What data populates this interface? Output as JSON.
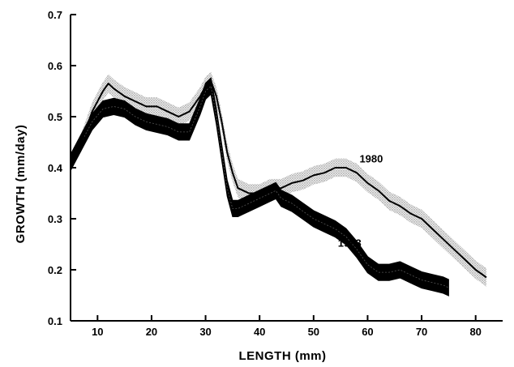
{
  "chart_data": {
    "type": "line",
    "title": "",
    "xlabel": "LENGTH (mm)",
    "ylabel": "GROWTH (mm/day)",
    "xlim": [
      5,
      85
    ],
    "ylim": [
      0.1,
      0.7
    ],
    "xticks": [
      10,
      20,
      30,
      40,
      50,
      60,
      70,
      80
    ],
    "xtick_labels": [
      "10",
      "20",
      "30",
      "40",
      "50",
      "60",
      "70",
      "80"
    ],
    "yticks": [
      0.1,
      0.2,
      0.3,
      0.4,
      0.5,
      0.6,
      0.7
    ],
    "ytick_labels": [
      "0.1",
      "0.2",
      "0.3",
      "0.4",
      "0.5",
      "0.6",
      "0.7"
    ],
    "grid": false,
    "legend": "none",
    "series": [
      {
        "name": "1980",
        "style": "thin line with stippled confidence band",
        "color": "#000000",
        "band_color": "#bdbdbd",
        "x": [
          5,
          7,
          9,
          11,
          12,
          13,
          15,
          17,
          19,
          21,
          23,
          25,
          27,
          29,
          30,
          31,
          32,
          33,
          34,
          35,
          36,
          37,
          38,
          40,
          42,
          44,
          46,
          48,
          50,
          52,
          54,
          56,
          58,
          60,
          62,
          64,
          66,
          68,
          70,
          72,
          74,
          76,
          78,
          80,
          82
        ],
        "y": [
          0.41,
          0.45,
          0.51,
          0.55,
          0.565,
          0.555,
          0.54,
          0.53,
          0.52,
          0.52,
          0.51,
          0.5,
          0.51,
          0.54,
          0.56,
          0.57,
          0.54,
          0.49,
          0.43,
          0.39,
          0.36,
          0.355,
          0.35,
          0.35,
          0.36,
          0.36,
          0.37,
          0.375,
          0.385,
          0.39,
          0.4,
          0.4,
          0.39,
          0.37,
          0.355,
          0.335,
          0.325,
          0.31,
          0.3,
          0.28,
          0.26,
          0.24,
          0.22,
          0.2,
          0.185
        ],
        "band_halfwidth": 0.018
      },
      {
        "name": "1983",
        "style": "thick solid band",
        "color": "#000000",
        "x": [
          5,
          7,
          9,
          11,
          13,
          15,
          17,
          19,
          21,
          23,
          25,
          27,
          29,
          30,
          31,
          32,
          33,
          34,
          35,
          36,
          37,
          38,
          40,
          42,
          43,
          44,
          46,
          48,
          50,
          52,
          54,
          56,
          58,
          60,
          62,
          64,
          66,
          68,
          70,
          72,
          74,
          75
        ],
        "y": [
          0.41,
          0.45,
          0.49,
          0.515,
          0.52,
          0.515,
          0.5,
          0.49,
          0.485,
          0.48,
          0.47,
          0.47,
          0.52,
          0.55,
          0.56,
          0.5,
          0.43,
          0.36,
          0.32,
          0.32,
          0.325,
          0.33,
          0.34,
          0.35,
          0.355,
          0.34,
          0.33,
          0.315,
          0.3,
          0.29,
          0.28,
          0.265,
          0.24,
          0.21,
          0.195,
          0.195,
          0.2,
          0.19,
          0.18,
          0.175,
          0.17,
          0.165
        ],
        "band_halfwidth": 0.016
      }
    ],
    "annotations": [
      {
        "text": "1980",
        "x": 58.5,
        "y": 0.41
      },
      {
        "text": "1983",
        "x": 54.5,
        "y": 0.245
      }
    ]
  }
}
